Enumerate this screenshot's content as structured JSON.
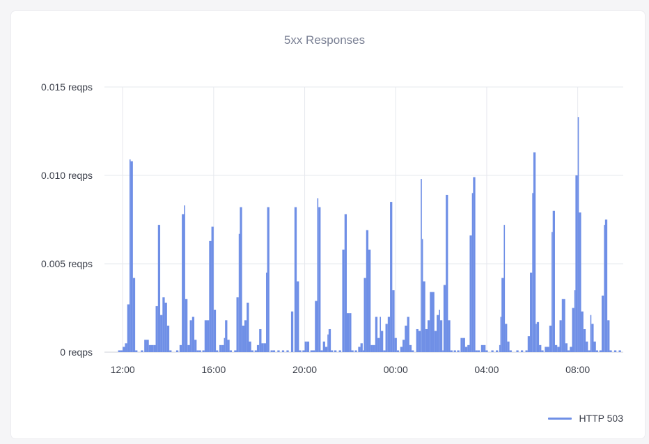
{
  "chart_data": {
    "type": "bar",
    "title": "5xx Responses",
    "xlabel": "",
    "ylabel": "",
    "ylim": [
      0,
      0.015
    ],
    "yticks": [
      {
        "value": 0,
        "label": "0 reqps"
      },
      {
        "value": 0.005,
        "label": "0.005 reqps"
      },
      {
        "value": 0.01,
        "label": "0.010 reqps"
      },
      {
        "value": 0.015,
        "label": "0.015 reqps"
      }
    ],
    "xlim": [
      11.2,
      34.0
    ],
    "xticks": [
      {
        "value": 12,
        "label": "12:00"
      },
      {
        "value": 16,
        "label": "16:00"
      },
      {
        "value": 20,
        "label": "20:00"
      },
      {
        "value": 24,
        "label": "00:00"
      },
      {
        "value": 28,
        "label": "04:00"
      },
      {
        "value": 32,
        "label": "08:00"
      }
    ],
    "grid": true,
    "legend_position": "bottom-right",
    "series": [
      {
        "name": "HTTP 503",
        "color": "#6f8fe6",
        "points": [
          [
            11.8,
            0.0001
          ],
          [
            11.9,
            0.0001
          ],
          [
            12.0,
            0.0003
          ],
          [
            12.1,
            0.0005
          ],
          [
            12.2,
            0.0027
          ],
          [
            12.3,
            0.0109
          ],
          [
            12.35,
            0.0108
          ],
          [
            12.45,
            0.0042
          ],
          [
            12.55,
            0.0001
          ],
          [
            12.8,
            0.0001
          ],
          [
            12.95,
            0.0007
          ],
          [
            13.05,
            0.0007
          ],
          [
            13.15,
            0.0004
          ],
          [
            13.25,
            0.0004
          ],
          [
            13.35,
            0.0004
          ],
          [
            13.45,
            0.0026
          ],
          [
            13.55,
            0.0072
          ],
          [
            13.65,
            0.0021
          ],
          [
            13.75,
            0.0031
          ],
          [
            13.85,
            0.0028
          ],
          [
            13.95,
            0.0015
          ],
          [
            14.05,
            0.0001
          ],
          [
            14.35,
            0.0001
          ],
          [
            14.5,
            0.0004
          ],
          [
            14.6,
            0.0078
          ],
          [
            14.7,
            0.0083
          ],
          [
            14.75,
            0.003
          ],
          [
            14.85,
            0.0004
          ],
          [
            14.95,
            0.0018
          ],
          [
            15.05,
            0.002
          ],
          [
            15.15,
            0.0007
          ],
          [
            15.25,
            0.0001
          ],
          [
            15.35,
            0.0001
          ],
          [
            15.5,
            0.0001
          ],
          [
            15.6,
            0.0018
          ],
          [
            15.7,
            0.0018
          ],
          [
            15.8,
            0.0063
          ],
          [
            15.9,
            0.0071
          ],
          [
            16.0,
            0.0024
          ],
          [
            16.1,
            0.0001
          ],
          [
            16.25,
            0.0004
          ],
          [
            16.35,
            0.0004
          ],
          [
            16.45,
            0.0008
          ],
          [
            16.5,
            0.0018
          ],
          [
            16.6,
            0.0007
          ],
          [
            16.7,
            0.0001
          ],
          [
            16.9,
            0.0001
          ],
          [
            17.0,
            0.0031
          ],
          [
            17.1,
            0.0067
          ],
          [
            17.15,
            0.0082
          ],
          [
            17.25,
            0.0015
          ],
          [
            17.35,
            0.0018
          ],
          [
            17.45,
            0.0028
          ],
          [
            17.55,
            0.0006
          ],
          [
            17.65,
            0.0001
          ],
          [
            17.8,
            0.0001
          ],
          [
            17.9,
            0.0004
          ],
          [
            18.0,
            0.0013
          ],
          [
            18.1,
            0.0005
          ],
          [
            18.2,
            0.0005
          ],
          [
            18.3,
            0.0045
          ],
          [
            18.35,
            0.0082
          ],
          [
            18.5,
            0.0001
          ],
          [
            18.6,
            0.0001
          ],
          [
            18.8,
            0.0001
          ],
          [
            19.0,
            0.0001
          ],
          [
            19.2,
            0.0001
          ],
          [
            19.4,
            0.0023
          ],
          [
            19.55,
            0.0082
          ],
          [
            19.65,
            0.004
          ],
          [
            19.75,
            0.0001
          ],
          [
            19.9,
            0.0001
          ],
          [
            20.0,
            0.0006
          ],
          [
            20.1,
            0.0006
          ],
          [
            20.25,
            0.0001
          ],
          [
            20.35,
            0.0001
          ],
          [
            20.45,
            0.0029
          ],
          [
            20.55,
            0.0087
          ],
          [
            20.6,
            0.0082
          ],
          [
            20.7,
            0.0001
          ],
          [
            20.8,
            0.0006
          ],
          [
            20.9,
            0.0003
          ],
          [
            21.0,
            0.001
          ],
          [
            21.05,
            0.0013
          ],
          [
            21.15,
            0.0001
          ],
          [
            21.3,
            0.0001
          ],
          [
            21.5,
            0.0001
          ],
          [
            21.65,
            0.0058
          ],
          [
            21.75,
            0.0078
          ],
          [
            21.85,
            0.0022
          ],
          [
            21.95,
            0.0022
          ],
          [
            22.05,
            0.0001
          ],
          [
            22.2,
            0.0001
          ],
          [
            22.35,
            0.0003
          ],
          [
            22.45,
            0.0005
          ],
          [
            22.55,
            0.0001
          ],
          [
            22.6,
            0.0042
          ],
          [
            22.7,
            0.0069
          ],
          [
            22.8,
            0.0058
          ],
          [
            22.9,
            0.0004
          ],
          [
            23.0,
            0.0004
          ],
          [
            23.1,
            0.002
          ],
          [
            23.2,
            0.0008
          ],
          [
            23.3,
            0.002
          ],
          [
            23.35,
            0.0012
          ],
          [
            23.45,
            0.0001
          ],
          [
            23.55,
            0.0016
          ],
          [
            23.65,
            0.002
          ],
          [
            23.75,
            0.0085
          ],
          [
            23.85,
            0.0035
          ],
          [
            23.95,
            0.0008
          ],
          [
            24.05,
            0.0001
          ],
          [
            24.2,
            0.0003
          ],
          [
            24.3,
            0.0007
          ],
          [
            24.4,
            0.0015
          ],
          [
            24.5,
            0.002
          ],
          [
            24.6,
            0.0004
          ],
          [
            24.7,
            0.0001
          ],
          [
            24.9,
            0.0013
          ],
          [
            25.0,
            0.0012
          ],
          [
            25.1,
            0.0098
          ],
          [
            25.15,
            0.0064
          ],
          [
            25.2,
            0.004
          ],
          [
            25.3,
            0.0013
          ],
          [
            25.4,
            0.0018
          ],
          [
            25.5,
            0.0034
          ],
          [
            25.6,
            0.0034
          ],
          [
            25.7,
            0.0012
          ],
          [
            25.8,
            0.0021
          ],
          [
            25.9,
            0.0024
          ],
          [
            25.95,
            0.0018
          ],
          [
            26.05,
            0.0001
          ],
          [
            26.1,
            0.0038
          ],
          [
            26.2,
            0.0089
          ],
          [
            26.3,
            0.0018
          ],
          [
            26.4,
            0.0001
          ],
          [
            26.55,
            0.0001
          ],
          [
            26.7,
            0.0001
          ],
          [
            26.85,
            0.0008
          ],
          [
            26.95,
            0.0008
          ],
          [
            27.05,
            0.0003
          ],
          [
            27.15,
            0.0004
          ],
          [
            27.25,
            0.0066
          ],
          [
            27.35,
            0.009
          ],
          [
            27.4,
            0.0099
          ],
          [
            27.5,
            0.0001
          ],
          [
            27.6,
            0.0001
          ],
          [
            27.75,
            0.0004
          ],
          [
            27.85,
            0.0004
          ],
          [
            27.95,
            0.0001
          ],
          [
            28.2,
            0.0001
          ],
          [
            28.4,
            0.0001
          ],
          [
            28.55,
            0.0004
          ],
          [
            28.6,
            0.002
          ],
          [
            28.65,
            0.0042
          ],
          [
            28.75,
            0.0072
          ],
          [
            28.8,
            0.0016
          ],
          [
            28.9,
            0.0006
          ],
          [
            29.0,
            0.0001
          ],
          [
            29.3,
            0.0001
          ],
          [
            29.5,
            0.0001
          ],
          [
            29.7,
            0.0001
          ],
          [
            29.8,
            0.0009
          ],
          [
            29.9,
            0.0045
          ],
          [
            30.0,
            0.009
          ],
          [
            30.05,
            0.0113
          ],
          [
            30.15,
            0.0016
          ],
          [
            30.2,
            0.0017
          ],
          [
            30.3,
            0.0004
          ],
          [
            30.4,
            0.0001
          ],
          [
            30.55,
            0.0003
          ],
          [
            30.65,
            0.0003
          ],
          [
            30.75,
            0.0015
          ],
          [
            30.85,
            0.0068
          ],
          [
            30.9,
            0.008
          ],
          [
            31.0,
            0.0004
          ],
          [
            31.1,
            0.0003
          ],
          [
            31.2,
            0.0018
          ],
          [
            31.3,
            0.003
          ],
          [
            31.35,
            0.003
          ],
          [
            31.45,
            0.0005
          ],
          [
            31.55,
            0.0001
          ],
          [
            31.65,
            0.0003
          ],
          [
            31.75,
            0.0025
          ],
          [
            31.85,
            0.0035
          ],
          [
            31.9,
            0.01
          ],
          [
            32.0,
            0.0133
          ],
          [
            32.05,
            0.0079
          ],
          [
            32.15,
            0.0023
          ],
          [
            32.25,
            0.0013
          ],
          [
            32.35,
            0.0006
          ],
          [
            32.45,
            0.0001
          ],
          [
            32.55,
            0.0021
          ],
          [
            32.6,
            0.0016
          ],
          [
            32.7,
            0.0006
          ],
          [
            32.8,
            0.0001
          ],
          [
            32.95,
            0.0001
          ],
          [
            33.05,
            0.0032
          ],
          [
            33.15,
            0.0072
          ],
          [
            33.2,
            0.0075
          ],
          [
            33.3,
            0.0018
          ],
          [
            33.4,
            0.0001
          ],
          [
            33.6,
            0.0001
          ],
          [
            33.8,
            0.0001
          ]
        ]
      }
    ]
  }
}
